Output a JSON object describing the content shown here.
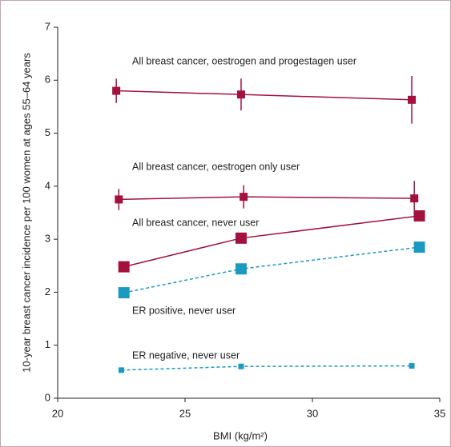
{
  "chart_data": {
    "type": "line",
    "x_label": "BMI (kg/m²)",
    "y_label": "10-year breast cancer incidence per 100 women at ages 55–64 years",
    "xlim": [
      20,
      35
    ],
    "xticks": [
      20,
      25,
      30,
      35
    ],
    "ylim": [
      0,
      7
    ],
    "yticks": [
      0,
      1,
      2,
      3,
      4,
      5,
      6,
      7
    ],
    "series": [
      {
        "name": "All breast cancer, oestrogen and progestagen user",
        "color": "#a3123f",
        "dashed": false,
        "x": [
          22.3,
          27.2,
          33.9
        ],
        "values": [
          5.8,
          5.73,
          5.63
        ],
        "errors": [
          0.23,
          0.3,
          0.45
        ]
      },
      {
        "name": "All breast cancer, oestrogen only user",
        "color": "#a3123f",
        "dashed": false,
        "x": [
          22.4,
          27.3,
          34.0
        ],
        "values": [
          3.75,
          3.8,
          3.77
        ],
        "errors": [
          0.2,
          0.22,
          0.33
        ]
      },
      {
        "name": "All breast cancer, never user",
        "color": "#a3123f",
        "dashed": false,
        "x": [
          22.6,
          27.2,
          34.2
        ],
        "values": [
          2.48,
          3.02,
          3.44
        ]
      },
      {
        "name": "ER positive, never user",
        "color": "#1a9ac0",
        "dashed": true,
        "x": [
          22.6,
          27.2,
          34.2
        ],
        "values": [
          1.99,
          2.44,
          2.85
        ]
      },
      {
        "name": "ER negative, never user",
        "color": "#1a9ac0",
        "dashed": true,
        "x": [
          22.5,
          27.2,
          33.9
        ],
        "values": [
          0.53,
          0.6,
          0.61
        ]
      }
    ]
  }
}
